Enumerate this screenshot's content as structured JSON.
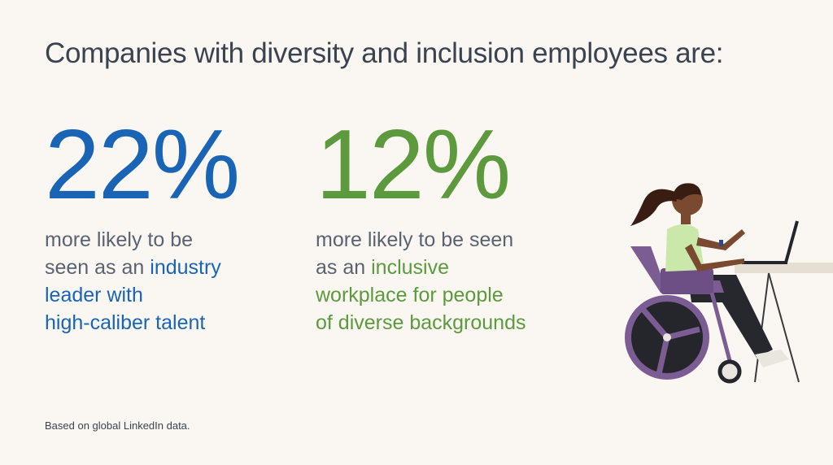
{
  "title": "Companies with diversity and inclusion employees are:",
  "stats": [
    {
      "figure": "22%",
      "color": "#1a64b5",
      "lines": [
        [
          {
            "text": "more likely to be",
            "accent": false
          }
        ],
        [
          {
            "text": "seen as an ",
            "accent": false
          },
          {
            "text": "industry",
            "accent": true
          }
        ],
        [
          {
            "text": "leader with",
            "accent": true
          }
        ],
        [
          {
            "text": "high-caliber talent",
            "accent": true
          }
        ]
      ]
    },
    {
      "figure": "12%",
      "color": "#5c9a3d",
      "lines": [
        [
          {
            "text": "more likely to be seen",
            "accent": false
          }
        ],
        [
          {
            "text": "as an ",
            "accent": false
          },
          {
            "text": "inclusive",
            "accent": true
          }
        ],
        [
          {
            "text": "workplace for people",
            "accent": true
          }
        ],
        [
          {
            "text": "of diverse backgrounds",
            "accent": true
          }
        ]
      ]
    }
  ],
  "footnote": "Based on global LinkedIn data."
}
